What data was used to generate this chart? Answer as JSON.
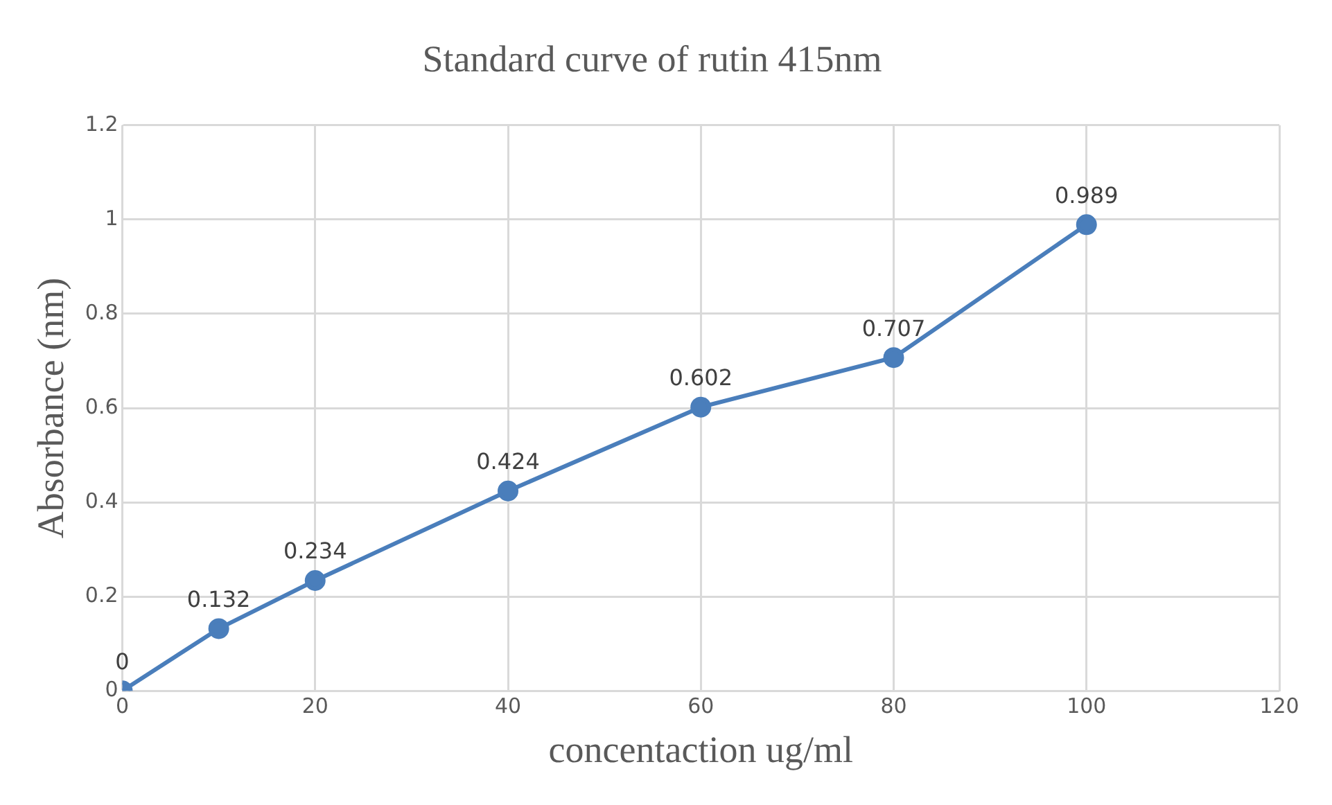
{
  "chart_data": {
    "type": "line",
    "title": "Standard curve of rutin 415nm",
    "xlabel": "concentaction ug/ml",
    "ylabel": "Absorbance (nm)",
    "x": [
      0,
      10,
      20,
      40,
      60,
      80,
      100
    ],
    "series": [
      {
        "color": "#4a7ebb",
        "values": [
          0,
          0.132,
          0.234,
          0.424,
          0.602,
          0.707,
          0.989
        ]
      }
    ],
    "xlim": [
      0,
      120
    ],
    "xticks": [
      0,
      20,
      40,
      60,
      80,
      100,
      120
    ],
    "ylim": [
      0,
      1.2
    ],
    "yticks": [
      0,
      0.2,
      0.4,
      0.6,
      0.8,
      1,
      1.2
    ],
    "grid": true,
    "marker": "circle",
    "line_style": "solid",
    "data_labels": true
  }
}
